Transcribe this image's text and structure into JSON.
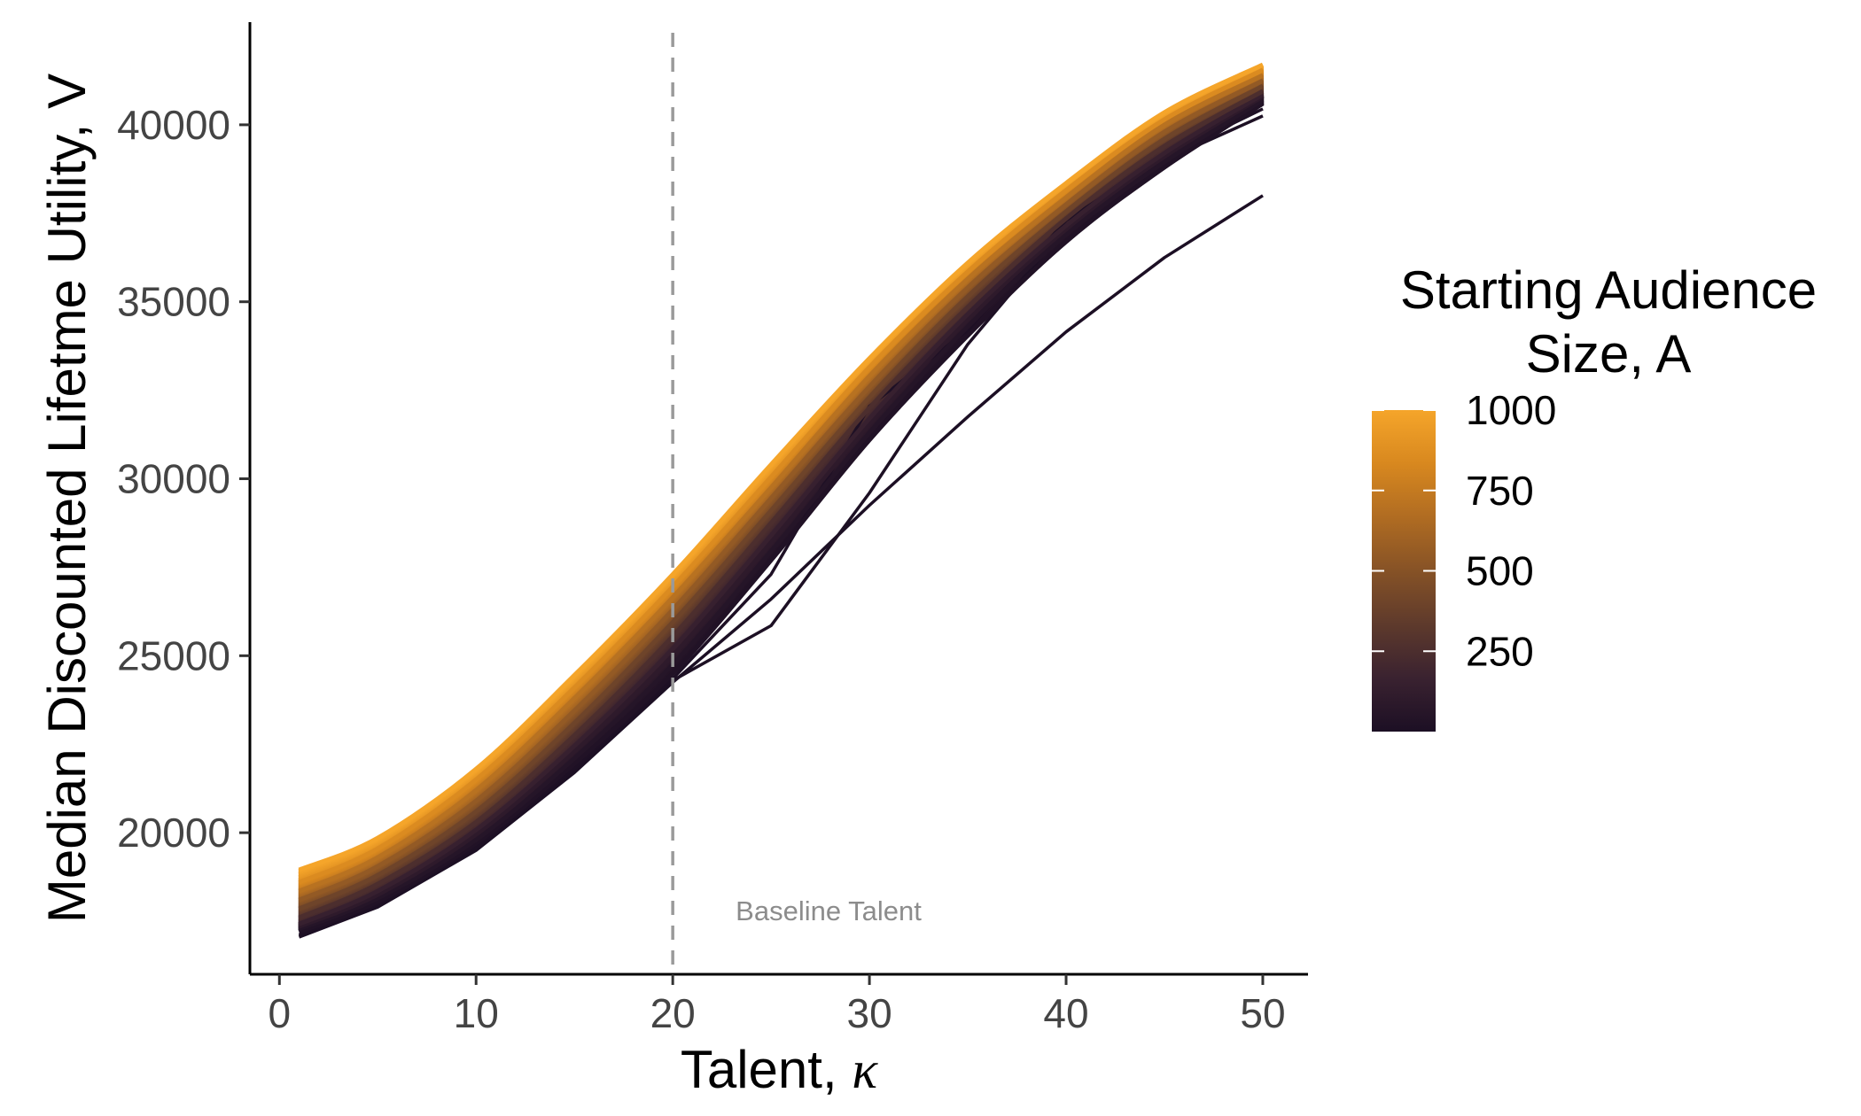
{
  "chart_data": {
    "type": "line",
    "xlabel_text": "Talent, ",
    "xlabel_symbol": "κ",
    "ylabel": "Median Discounted Lifetme Utility, V",
    "xlim": [
      -1.5,
      52.3
    ],
    "ylim": [
      16000,
      42900
    ],
    "x_ticks": [
      0,
      10,
      20,
      30,
      40,
      50
    ],
    "x_tick_labels": [
      "0",
      "10",
      "20",
      "30",
      "40",
      "50"
    ],
    "y_ticks": [
      20000,
      25000,
      30000,
      35000,
      40000
    ],
    "y_tick_labels": [
      "20000",
      "25000",
      "30000",
      "35000",
      "40000"
    ],
    "grid": false,
    "reference_line": {
      "x": 20,
      "style": "dashed",
      "color": "#9a9a9a"
    },
    "annotation": {
      "text": "Baseline Talent",
      "x": 23.2,
      "y": 17800
    },
    "color_scale": {
      "title_line1": "Starting Audience",
      "title_line2": "Size, A",
      "min": 0,
      "max": 1000,
      "breaks": [
        1000,
        750,
        500,
        250
      ],
      "break_labels": [
        "1000",
        "750",
        "500",
        "250"
      ],
      "palette": [
        "#1c0f24",
        "#3a2230",
        "#5e3a2c",
        "#865226",
        "#b06c22",
        "#d8881f",
        "#f5a52a"
      ],
      "legend_position": "right"
    },
    "series_rule": "one line per starting audience size A; V grows with talent kappa",
    "x": [
      1,
      5,
      10,
      15,
      20,
      25,
      30,
      35,
      40,
      45,
      50
    ],
    "series": [
      {
        "A": 1,
        "values": [
          17050,
          17900,
          19500,
          21700,
          24250,
          26600,
          29250,
          31750,
          34150,
          36250,
          38000
        ]
      },
      {
        "A": 5,
        "values": [
          17080,
          17930,
          19550,
          21780,
          24300,
          25850,
          29600,
          33800,
          37100,
          39000,
          40250
        ]
      },
      {
        "A": 10,
        "values": [
          17120,
          17980,
          19600,
          21830,
          24350,
          27300,
          32050,
          34200,
          37300,
          39100,
          40450
        ]
      },
      {
        "A": 25,
        "values": [
          17200,
          18050,
          19700,
          21950,
          24500,
          27700,
          31100,
          34050,
          36700,
          38800,
          40600
        ]
      },
      {
        "A": 50,
        "values": [
          17280,
          18150,
          19800,
          22100,
          24750,
          27950,
          31300,
          34300,
          36900,
          38950,
          40700
        ]
      },
      {
        "A": 100,
        "values": [
          17350,
          18250,
          19950,
          22300,
          25000,
          28200,
          31550,
          34500,
          37050,
          39100,
          40800
        ]
      },
      {
        "A": 150,
        "values": [
          17420,
          18350,
          20080,
          22450,
          25200,
          28400,
          31700,
          34650,
          37150,
          39200,
          40850
        ]
      },
      {
        "A": 250,
        "values": [
          17600,
          18550,
          20300,
          22750,
          25550,
          28750,
          32000,
          34850,
          37350,
          39400,
          40950
        ]
      },
      {
        "A": 400,
        "values": [
          17850,
          18800,
          20600,
          23100,
          25950,
          29100,
          32300,
          35150,
          37550,
          39600,
          41100
        ]
      },
      {
        "A": 550,
        "values": [
          18100,
          19050,
          20900,
          23450,
          26300,
          29450,
          32600,
          35400,
          37750,
          39800,
          41250
        ]
      },
      {
        "A": 700,
        "values": [
          18350,
          19300,
          21200,
          23800,
          26650,
          29750,
          32900,
          35650,
          37950,
          40000,
          41400
        ]
      },
      {
        "A": 850,
        "values": [
          18600,
          19550,
          21500,
          24100,
          26950,
          30050,
          33150,
          35850,
          38150,
          40150,
          41550
        ]
      },
      {
        "A": 1000,
        "values": [
          18950,
          19850,
          21800,
          24450,
          27300,
          30400,
          33400,
          36100,
          38350,
          40350,
          41700
        ]
      }
    ]
  }
}
